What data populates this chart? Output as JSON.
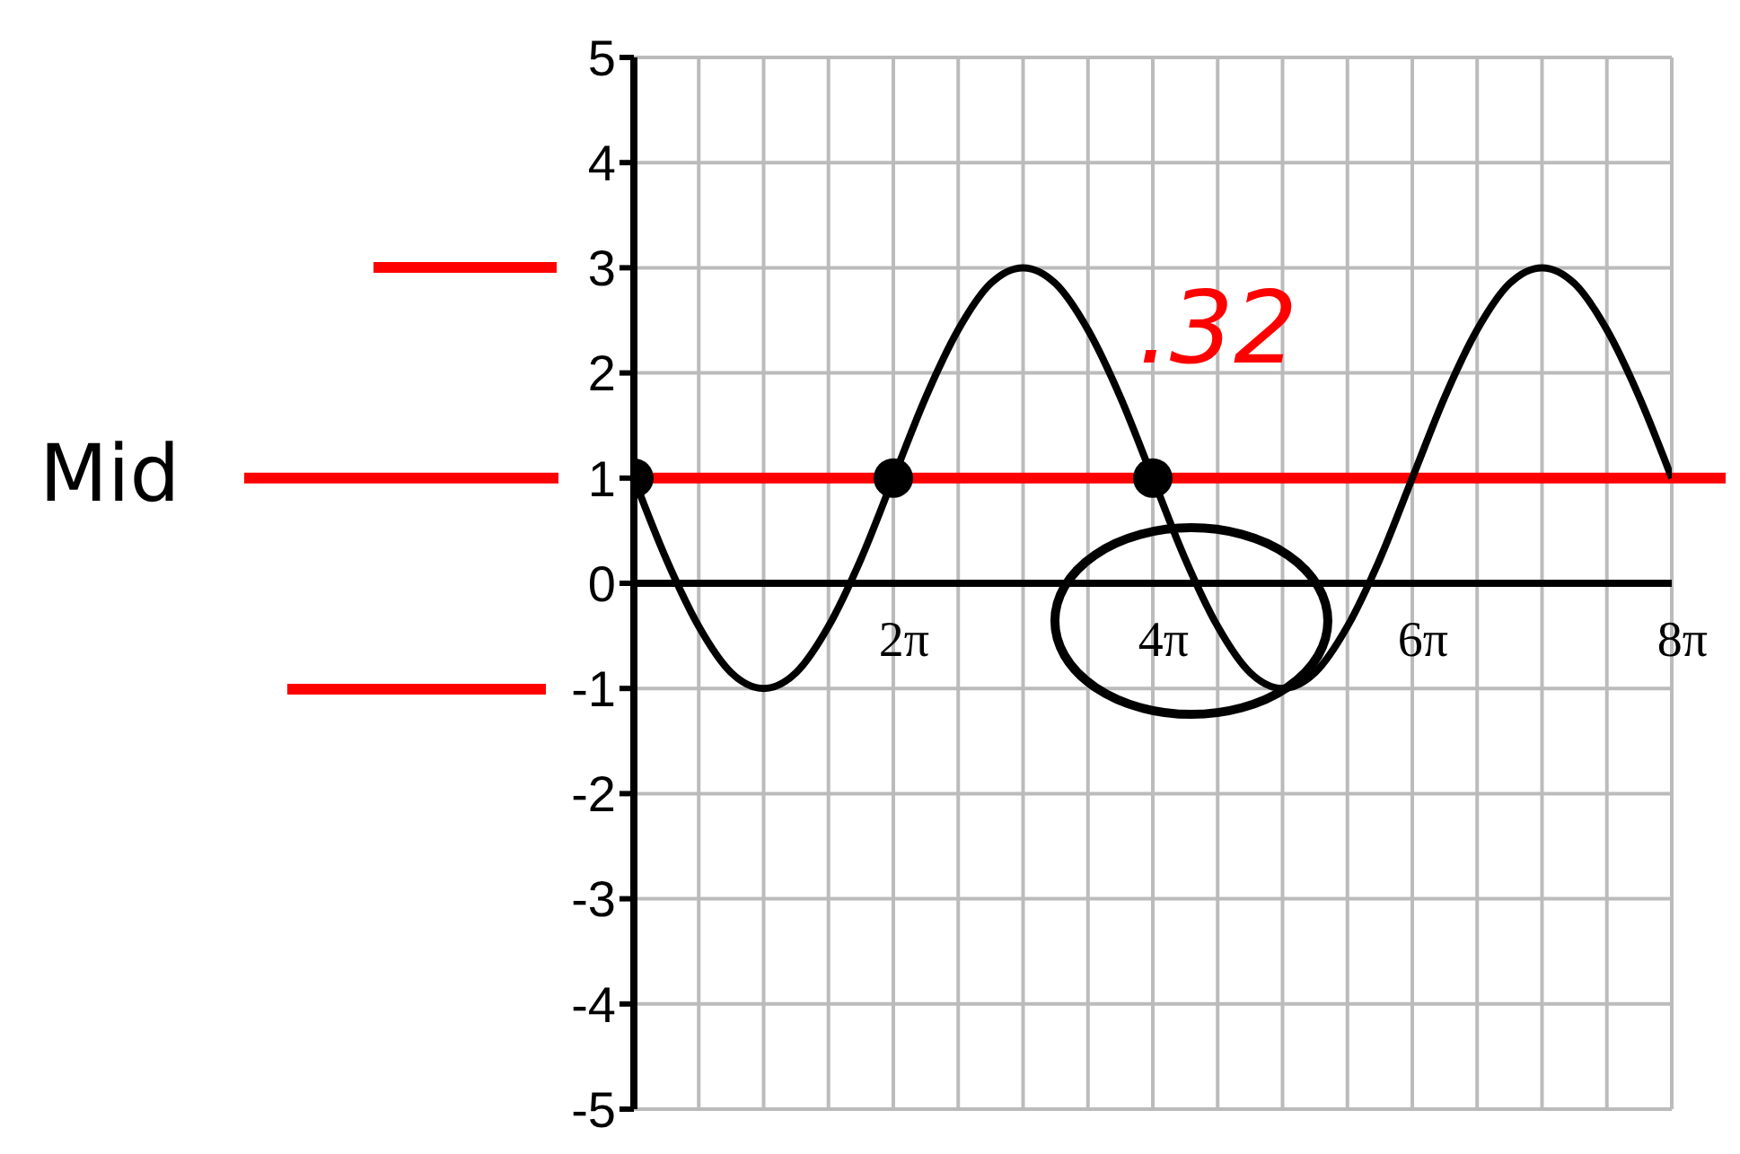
{
  "chart_data": {
    "type": "line",
    "x": [
      0,
      0.785,
      1.571,
      2.356,
      3.142,
      3.927,
      4.712,
      5.498,
      6.283,
      7.069,
      7.854,
      8.639,
      9.425,
      10.21,
      10.996,
      11.781,
      12.566,
      13.352,
      14.137,
      14.923,
      15.708,
      16.493,
      17.279,
      18.064,
      18.85,
      19.635,
      20.42,
      21.206,
      21.991,
      22.777,
      23.562,
      24.347,
      25.133
    ],
    "series": [
      {
        "color": "#000000",
        "values": [
          1,
          0.23,
          -0.41,
          -0.85,
          -1,
          -0.85,
          -0.41,
          0.23,
          1,
          1.77,
          2.41,
          2.85,
          3,
          2.85,
          2.41,
          1.77,
          1,
          0.23,
          -0.41,
          -0.85,
          -1,
          -0.85,
          -0.41,
          0.23,
          1,
          1.77,
          2.41,
          2.85,
          3,
          2.85,
          2.41,
          1.77,
          1
        ]
      },
      {
        "type": "scatter",
        "color": "#000000",
        "marker": "circle",
        "x": [
          0,
          6.283,
          12.566
        ],
        "values": [
          1,
          1,
          1
        ]
      }
    ],
    "xlim": [
      0,
      25.133
    ],
    "xticks": [
      {
        "value": 0,
        "label": null
      },
      {
        "value": 1.571,
        "label": null
      },
      {
        "value": 3.142,
        "label": null
      },
      {
        "value": 4.712,
        "label": null
      },
      {
        "value": 6.283,
        "label": "2π"
      },
      {
        "value": 7.854,
        "label": null
      },
      {
        "value": 9.425,
        "label": null
      },
      {
        "value": 10.996,
        "label": null
      },
      {
        "value": 12.566,
        "label": "4π"
      },
      {
        "value": 14.137,
        "label": null
      },
      {
        "value": 15.708,
        "label": null
      },
      {
        "value": 17.279,
        "label": null
      },
      {
        "value": 18.85,
        "label": "6π"
      },
      {
        "value": 20.42,
        "label": null
      },
      {
        "value": 21.991,
        "label": null
      },
      {
        "value": 23.562,
        "label": null
      },
      {
        "value": 25.133,
        "label": "8π"
      }
    ],
    "ylim": [
      -5,
      5
    ],
    "yticks": [
      -5,
      -4,
      -3,
      -2,
      -1,
      0,
      1,
      2,
      3,
      4,
      5
    ],
    "grid": true,
    "marker": "none",
    "ref_lines": [
      {
        "axis": "y",
        "value": 1,
        "color": "#ff0000"
      }
    ],
    "annotations": [
      ".32",
      "Mid"
    ]
  }
}
